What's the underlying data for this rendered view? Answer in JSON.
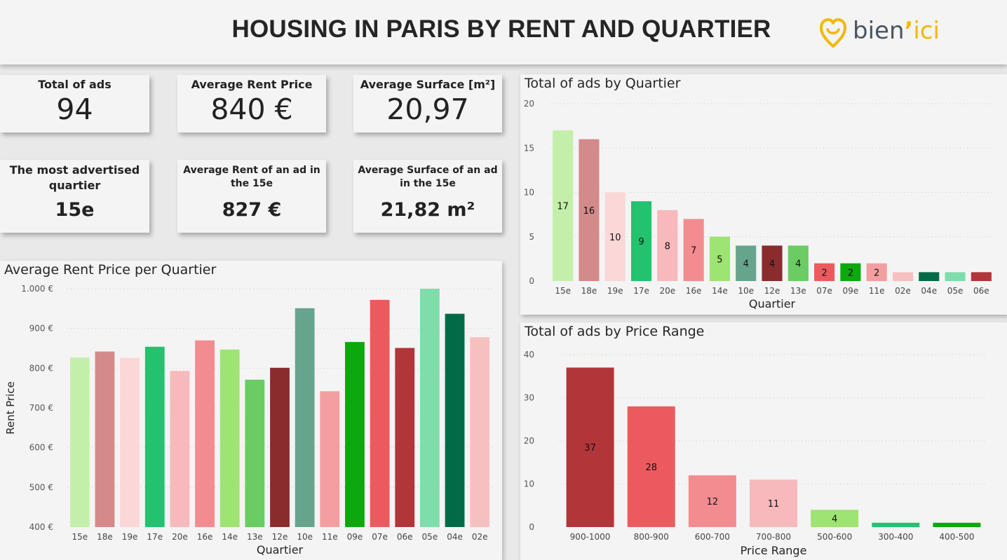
{
  "header": {
    "title": "HOUSING IN PARIS BY RENT AND QUARTIER",
    "logo_main": "bien",
    "logo_apostrophe": "’",
    "logo_accent": "ici"
  },
  "kpis": {
    "total_ads": {
      "label": "Total of ads",
      "value": "94"
    },
    "avg_rent": {
      "label": "Average Rent Price",
      "value": "840 €"
    },
    "avg_surface": {
      "label": "Average Surface [m²]",
      "value": "20,97"
    },
    "most_quartier": {
      "label": "The most advertised quartier",
      "value": "15e"
    },
    "avg_rent_15": {
      "label": "Average Rent of an ad in the 15e",
      "value": "827 €"
    },
    "avg_surface_15": {
      "label": "Average Surface of an ad in the 15e",
      "value": "21,82 m²"
    }
  },
  "chart_data": [
    {
      "id": "rent",
      "type": "bar",
      "title": "Average Rent Price per Quartier",
      "xlabel": "Quartier",
      "ylabel": "Rent Price",
      "ylim": [
        400,
        1000
      ],
      "yticks": [
        400,
        500,
        600,
        700,
        800,
        900,
        1000
      ],
      "ytick_labels": [
        "400 €",
        "500 €",
        "600 €",
        "700 €",
        "800 €",
        "900 €",
        "1.000 €"
      ],
      "grid": true,
      "categories": [
        "15e",
        "18e",
        "19e",
        "17e",
        "20e",
        "16e",
        "14e",
        "13e",
        "12e",
        "10e",
        "11e",
        "09e",
        "07e",
        "06e",
        "05e",
        "04e",
        "02e"
      ],
      "values": [
        827,
        842,
        826,
        854,
        793,
        870,
        847,
        771,
        801,
        951,
        742,
        866,
        972,
        851,
        1000,
        937,
        878
      ],
      "colors": [
        "#c4efaa",
        "#d48a8a",
        "#fbd7d7",
        "#22c26e",
        "#f7b9bc",
        "#f28c90",
        "#9de473",
        "#6acc63",
        "#8a2b2e",
        "#67a48e",
        "#f39ea0",
        "#0da80d",
        "#ed5a5d",
        "#b2353a",
        "#7fdcab",
        "#006b46",
        "#f7c0c0"
      ]
    },
    {
      "id": "ads",
      "type": "bar",
      "title": "Total of ads by Quartier",
      "xlabel": "Quartier",
      "ylabel": "",
      "ylim": [
        0,
        20
      ],
      "yticks": [
        0,
        5,
        10,
        15,
        20
      ],
      "grid": true,
      "categories": [
        "15e",
        "18e",
        "19e",
        "17e",
        "20e",
        "16e",
        "14e",
        "10e",
        "12e",
        "13e",
        "07e",
        "09e",
        "11e",
        "02e",
        "04e",
        "05e",
        "06e"
      ],
      "values": [
        17,
        16,
        10,
        9,
        8,
        7,
        5,
        4,
        4,
        4,
        2,
        2,
        2,
        1,
        1,
        1,
        1
      ],
      "data_labels": [
        "17",
        "16",
        "10",
        "9",
        "8",
        "7",
        "5",
        "4",
        "4",
        "4",
        "2",
        "2",
        "2",
        "",
        "",
        "",
        ""
      ],
      "colors": [
        "#c4efaa",
        "#d48a8a",
        "#fbd7d7",
        "#22c26e",
        "#f7b9bc",
        "#f28c90",
        "#9de473",
        "#67a48e",
        "#8a2b2e",
        "#6acc63",
        "#ed5a5d",
        "#0da80d",
        "#f39ea0",
        "#f7c0c0",
        "#006b46",
        "#7fdcab",
        "#b2353a"
      ]
    },
    {
      "id": "price",
      "type": "bar",
      "title": "Total of ads by Price Range",
      "xlabel": "Price Range",
      "ylabel": "",
      "ylim": [
        0,
        40
      ],
      "yticks": [
        0,
        10,
        20,
        30,
        40
      ],
      "grid": true,
      "categories": [
        "900-1000",
        "800-900",
        "600-700",
        "700-800",
        "500-600",
        "300-400",
        "400-500"
      ],
      "values": [
        37,
        28,
        12,
        11,
        4,
        1,
        1
      ],
      "data_labels": [
        "37",
        "28",
        "12",
        "11",
        "4",
        "",
        ""
      ],
      "colors": [
        "#b2353a",
        "#ed5a5d",
        "#f28c90",
        "#f7b9bc",
        "#9de473",
        "#22c26e",
        "#0da80d"
      ]
    }
  ]
}
